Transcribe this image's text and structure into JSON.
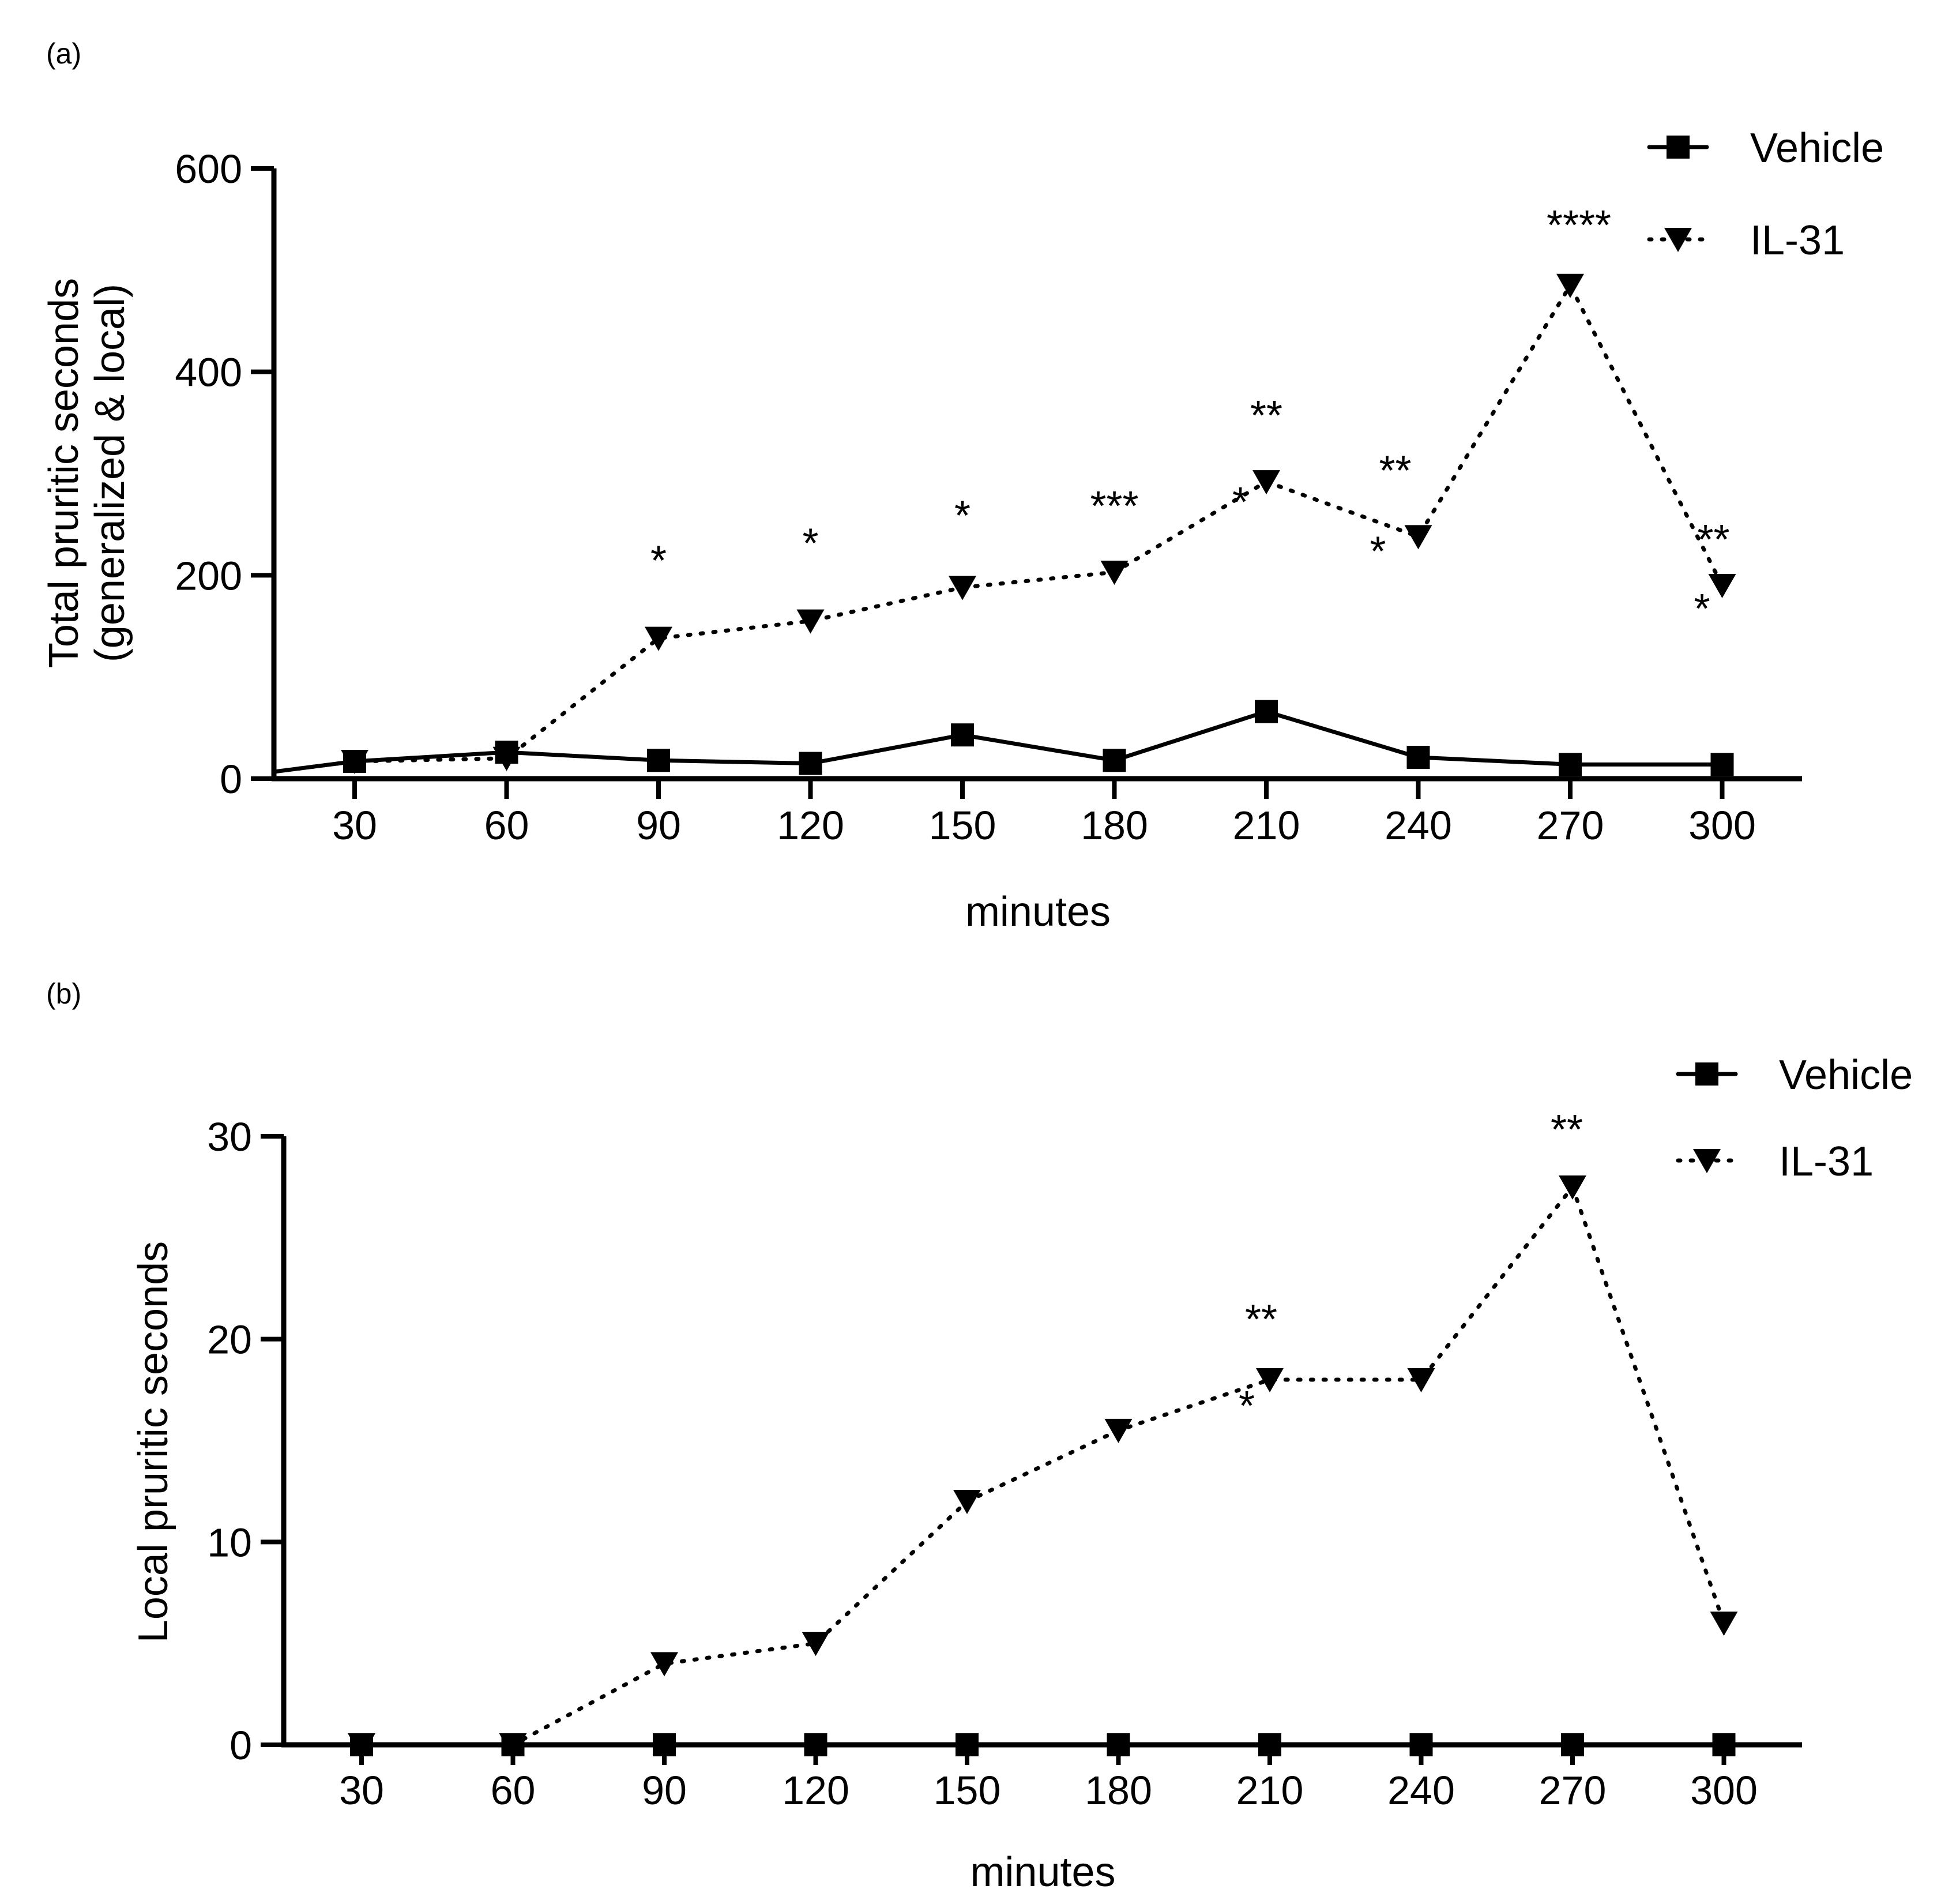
{
  "chart_data": [
    {
      "type": "line",
      "panel_label": "(a)",
      "title": "",
      "xlabel": "minutes",
      "ylabel_lines": [
        "Total pruritic seconds",
        "(generalized & local)"
      ],
      "categories": [
        "30",
        "60",
        "90",
        "120",
        "150",
        "180",
        "210",
        "240",
        "270",
        "300"
      ],
      "y_ticks": [
        "0",
        "200",
        "400",
        "600"
      ],
      "ylim": [
        0,
        600
      ],
      "grid": false,
      "legend_position": "top-right",
      "series": [
        {
          "name": "Vehicle",
          "style": "solid",
          "marker": "square",
          "values": [
            17,
            26,
            18,
            15,
            43,
            18,
            66,
            21,
            14,
            14
          ]
        },
        {
          "name": "IL-31",
          "style": "dotted",
          "marker": "triangle-down",
          "values": [
            17,
            20,
            138,
            155,
            188,
            203,
            292,
            238,
            485,
            190
          ]
        }
      ],
      "significance": [
        {
          "category": "90",
          "label": "*"
        },
        {
          "category": "120",
          "label": "*"
        },
        {
          "category": "150",
          "label": "*"
        },
        {
          "category": "180",
          "label": "***"
        },
        {
          "category": "210",
          "label": "**"
        },
        {
          "category": "210",
          "label": "*"
        },
        {
          "category": "240",
          "label": "**"
        },
        {
          "category": "240",
          "label": "*"
        },
        {
          "category": "270",
          "label": "****"
        },
        {
          "category": "300",
          "label": "**"
        },
        {
          "category": "300",
          "label": "*"
        }
      ]
    },
    {
      "type": "line",
      "panel_label": "(b)",
      "title": "",
      "xlabel": "minutes",
      "ylabel_lines": [
        "Local pruritic seconds"
      ],
      "categories": [
        "30",
        "60",
        "90",
        "120",
        "150",
        "180",
        "210",
        "240",
        "270",
        "300"
      ],
      "y_ticks": [
        "0",
        "10",
        "20",
        "30"
      ],
      "ylim": [
        0,
        30
      ],
      "grid": false,
      "legend_position": "top-right",
      "series": [
        {
          "name": "Vehicle",
          "style": "solid",
          "marker": "square",
          "values": [
            0,
            0,
            0,
            0,
            0,
            0,
            0,
            0,
            0,
            0
          ]
        },
        {
          "name": "IL-31",
          "style": "dotted",
          "marker": "triangle-down",
          "values": [
            0,
            0,
            4,
            5,
            12,
            15.5,
            18,
            18,
            27.5,
            6
          ]
        }
      ],
      "significance": [
        {
          "category": "210",
          "label": "**"
        },
        {
          "category": "210",
          "label": "*"
        },
        {
          "category": "270",
          "label": "**"
        }
      ]
    }
  ]
}
